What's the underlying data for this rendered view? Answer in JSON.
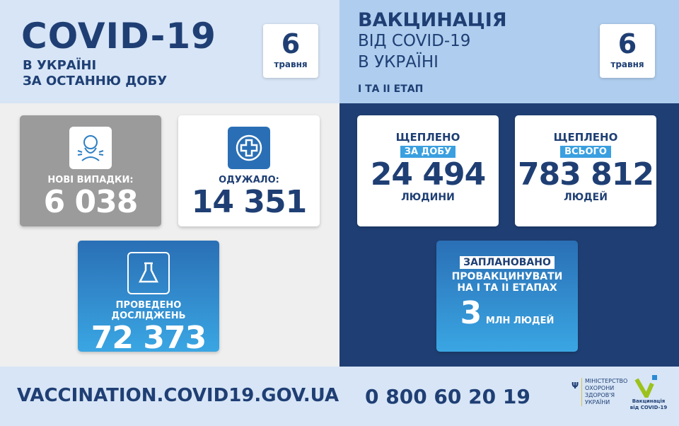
{
  "left_header": {
    "title": "COVID-19",
    "line1": "В УКРАЇНІ",
    "line2": "ЗА ОСТАННЮ ДОБУ",
    "date_day": "6",
    "date_month": "травня"
  },
  "right_header": {
    "line1": "ВАКЦИНАЦІЯ",
    "line2": "ВІД COVID-19",
    "line3": "В УКРАЇНІ",
    "stage": "І ТА ІІ ЕТАП",
    "date_day": "6",
    "date_month": "травня"
  },
  "cases": {
    "label": "НОВІ ВИПАДКИ:",
    "value": "6 038",
    "icon": "coughing-person-icon"
  },
  "recovered": {
    "label": "ОДУЖАЛО:",
    "value": "14 351",
    "icon": "medical-cross-icon"
  },
  "tests": {
    "label": "ПРОВЕДЕНО ДОСЛІДЖЕНЬ",
    "value": "72 373",
    "icon": "flask-icon"
  },
  "vaccinated_day": {
    "label": "ЩЕПЛЕНО",
    "pill": "ЗА ДОБУ",
    "value": "24 494",
    "unit": "ЛЮДИНИ"
  },
  "vaccinated_total": {
    "label": "ЩЕПЛЕНО",
    "pill": "ВСЬОГО",
    "value": "783 812",
    "unit": "ЛЮДЕЙ"
  },
  "planned": {
    "pill": "ЗАПЛАНОВАНО",
    "line1": "ПРОВАКЦИНУВАТИ",
    "line2": "НА І ТА ІІ ЕТАПАХ",
    "value": "3",
    "unit": "МЛН ЛЮДЕЙ"
  },
  "footer": {
    "url": "VACCINATION.COVID19.GOV.UA",
    "phone": "0 800 60 20 19",
    "ministry": [
      "МІНІСТЕРСТВО",
      "ОХОРОНИ",
      "ЗДОРОВ'Я",
      "УКРАЇНИ"
    ],
    "vacc_logo_line1": "Вакцинація",
    "vacc_logo_line2": "від COVID-19"
  },
  "colors": {
    "navy": "#1f3f74",
    "gray_card": "#9b9b9b",
    "blue": "#2d7fc4",
    "accent_cyan": "#3aa0e0",
    "logo_green": "#9cc21b"
  }
}
